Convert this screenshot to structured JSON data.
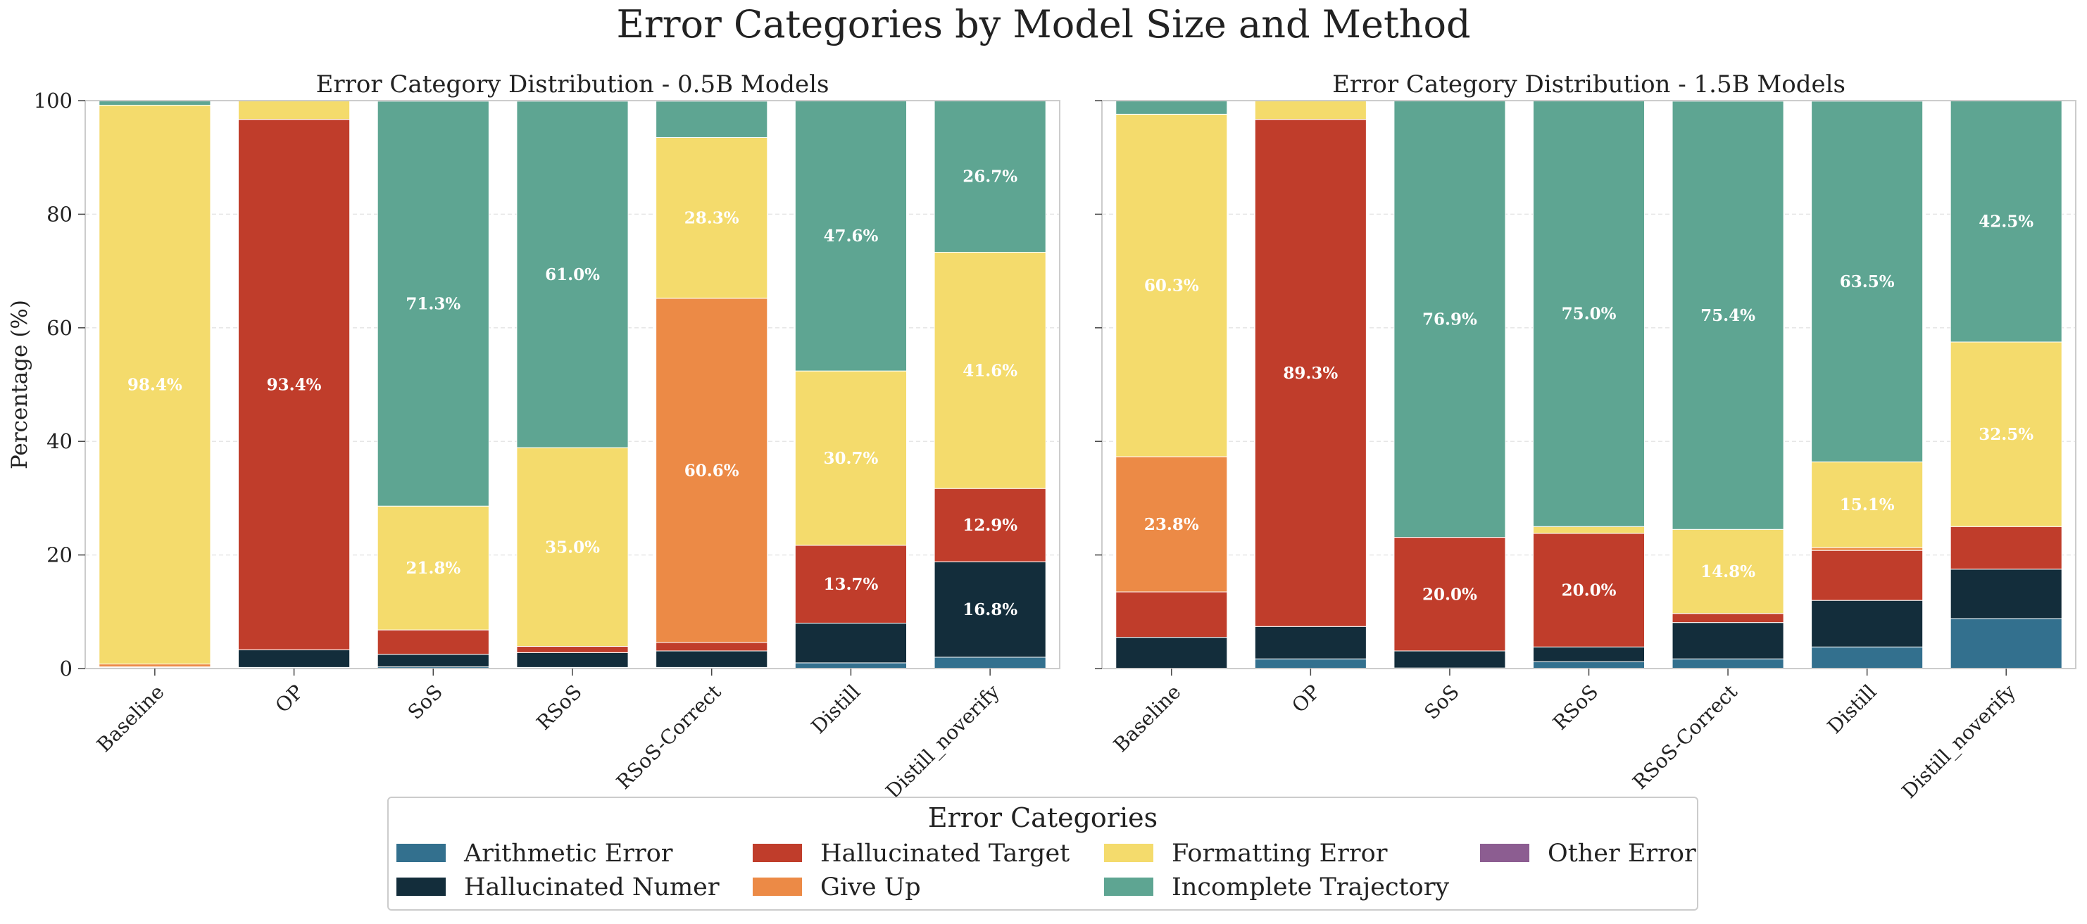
{
  "figure_title": "Error Categories by Model Size and Method",
  "legend": {
    "title": "Error Categories",
    "entries": [
      {
        "name": "Arithmetic Error",
        "color": "#33708e"
      },
      {
        "name": "Hallucinated Numer",
        "color": "#132d3b"
      },
      {
        "name": "Hallucinated Target",
        "color": "#c03d2b"
      },
      {
        "name": "Give Up",
        "color": "#ec8a46"
      },
      {
        "name": "Formatting Error",
        "color": "#f4db6c"
      },
      {
        "name": "Incomplete Trajectory",
        "color": "#5ea592"
      },
      {
        "name": "Other Error",
        "color": "#8c5d91"
      }
    ]
  },
  "chart_data": [
    {
      "type": "bar",
      "stacked": true,
      "title": "Error Category Distribution - 0.5B Models",
      "xlabel": "",
      "ylabel": "Percentage (%)",
      "ylim": [
        0,
        100
      ],
      "yticks": [
        0,
        20,
        40,
        60,
        80,
        100
      ],
      "grid": true,
      "categories": [
        "Baseline",
        "OP",
        "SoS",
        "RSoS",
        "RSoS-Correct",
        "Distill",
        "Distill_noverify"
      ],
      "series": [
        {
          "name": "Arithmetic Error",
          "values": [
            0,
            0.2,
            0.3,
            0.2,
            0.2,
            1.0,
            2.0
          ]
        },
        {
          "name": "Hallucinated Numer",
          "values": [
            0.2,
            3.1,
            2.2,
            2.6,
            2.9,
            7.0,
            16.8
          ]
        },
        {
          "name": "Hallucinated Target",
          "values": [
            0.1,
            93.4,
            4.3,
            1.1,
            1.5,
            13.7,
            12.9
          ]
        },
        {
          "name": "Give Up",
          "values": [
            0.5,
            0,
            0,
            0,
            60.6,
            0,
            0
          ]
        },
        {
          "name": "Formatting Error",
          "values": [
            98.4,
            3.3,
            21.8,
            35.0,
            28.3,
            30.7,
            41.6
          ]
        },
        {
          "name": "Incomplete Trajectory",
          "values": [
            0.8,
            0,
            71.3,
            61.0,
            6.4,
            47.6,
            26.7
          ]
        },
        {
          "name": "Other Error",
          "values": [
            0,
            0,
            0,
            0,
            0,
            0,
            0
          ]
        }
      ],
      "data_labels": [
        {
          "category": "Baseline",
          "series": "Formatting Error",
          "text": "98.4%"
        },
        {
          "category": "OP",
          "series": "Hallucinated Target",
          "text": "93.4%"
        },
        {
          "category": "SoS",
          "series": "Formatting Error",
          "text": "21.8%"
        },
        {
          "category": "SoS",
          "series": "Incomplete Trajectory",
          "text": "71.3%"
        },
        {
          "category": "RSoS",
          "series": "Formatting Error",
          "text": "35.0%"
        },
        {
          "category": "RSoS",
          "series": "Incomplete Trajectory",
          "text": "61.0%"
        },
        {
          "category": "RSoS-Correct",
          "series": "Give Up",
          "text": "60.6%"
        },
        {
          "category": "RSoS-Correct",
          "series": "Formatting Error",
          "text": "28.3%"
        },
        {
          "category": "Distill",
          "series": "Hallucinated Target",
          "text": "13.7%"
        },
        {
          "category": "Distill",
          "series": "Formatting Error",
          "text": "30.7%"
        },
        {
          "category": "Distill",
          "series": "Incomplete Trajectory",
          "text": "47.6%"
        },
        {
          "category": "Distill_noverify",
          "series": "Hallucinated Numer",
          "text": "16.8%"
        },
        {
          "category": "Distill_noverify",
          "series": "Hallucinated Target",
          "text": "12.9%"
        },
        {
          "category": "Distill_noverify",
          "series": "Formatting Error",
          "text": "41.6%"
        },
        {
          "category": "Distill_noverify",
          "series": "Incomplete Trajectory",
          "text": "26.7%"
        }
      ]
    },
    {
      "type": "bar",
      "stacked": true,
      "title": "Error Category Distribution - 1.5B Models",
      "xlabel": "",
      "ylabel": "",
      "ylim": [
        0,
        100
      ],
      "yticks": [
        0,
        20,
        40,
        60,
        80,
        100
      ],
      "grid": true,
      "categories": [
        "Baseline",
        "OP",
        "SoS",
        "RSoS",
        "RSoS-Correct",
        "Distill",
        "Distill_noverify"
      ],
      "series": [
        {
          "name": "Arithmetic Error",
          "values": [
            0,
            1.7,
            0.1,
            1.2,
            1.7,
            3.8,
            8.8
          ]
        },
        {
          "name": "Hallucinated Numer",
          "values": [
            5.5,
            5.7,
            3.0,
            2.6,
            6.4,
            8.2,
            8.7
          ]
        },
        {
          "name": "Hallucinated Target",
          "values": [
            8.0,
            89.3,
            20.0,
            20.0,
            1.6,
            8.8,
            7.5
          ]
        },
        {
          "name": "Give Up",
          "values": [
            23.8,
            0,
            0,
            0,
            0,
            0.5,
            0
          ]
        },
        {
          "name": "Formatting Error",
          "values": [
            60.3,
            3.3,
            0,
            1.2,
            14.8,
            15.1,
            32.5
          ]
        },
        {
          "name": "Incomplete Trajectory",
          "values": [
            2.4,
            0,
            76.9,
            75.0,
            75.4,
            63.5,
            42.5
          ]
        },
        {
          "name": "Other Error",
          "values": [
            0,
            0,
            0,
            0,
            0,
            0,
            0
          ]
        }
      ],
      "data_labels": [
        {
          "category": "Baseline",
          "series": "Give Up",
          "text": "23.8%"
        },
        {
          "category": "Baseline",
          "series": "Formatting Error",
          "text": "60.3%"
        },
        {
          "category": "OP",
          "series": "Hallucinated Target",
          "text": "89.3%"
        },
        {
          "category": "SoS",
          "series": "Hallucinated Target",
          "text": "20.0%"
        },
        {
          "category": "SoS",
          "series": "Incomplete Trajectory",
          "text": "76.9%"
        },
        {
          "category": "RSoS",
          "series": "Hallucinated Target",
          "text": "20.0%"
        },
        {
          "category": "RSoS",
          "series": "Incomplete Trajectory",
          "text": "75.0%"
        },
        {
          "category": "RSoS-Correct",
          "series": "Formatting Error",
          "text": "14.8%"
        },
        {
          "category": "RSoS-Correct",
          "series": "Incomplete Trajectory",
          "text": "75.4%"
        },
        {
          "category": "Distill",
          "series": "Formatting Error",
          "text": "15.1%"
        },
        {
          "category": "Distill",
          "series": "Incomplete Trajectory",
          "text": "63.5%"
        },
        {
          "category": "Distill_noverify",
          "series": "Formatting Error",
          "text": "32.5%"
        },
        {
          "category": "Distill_noverify",
          "series": "Incomplete Trajectory",
          "text": "42.5%"
        }
      ]
    }
  ]
}
